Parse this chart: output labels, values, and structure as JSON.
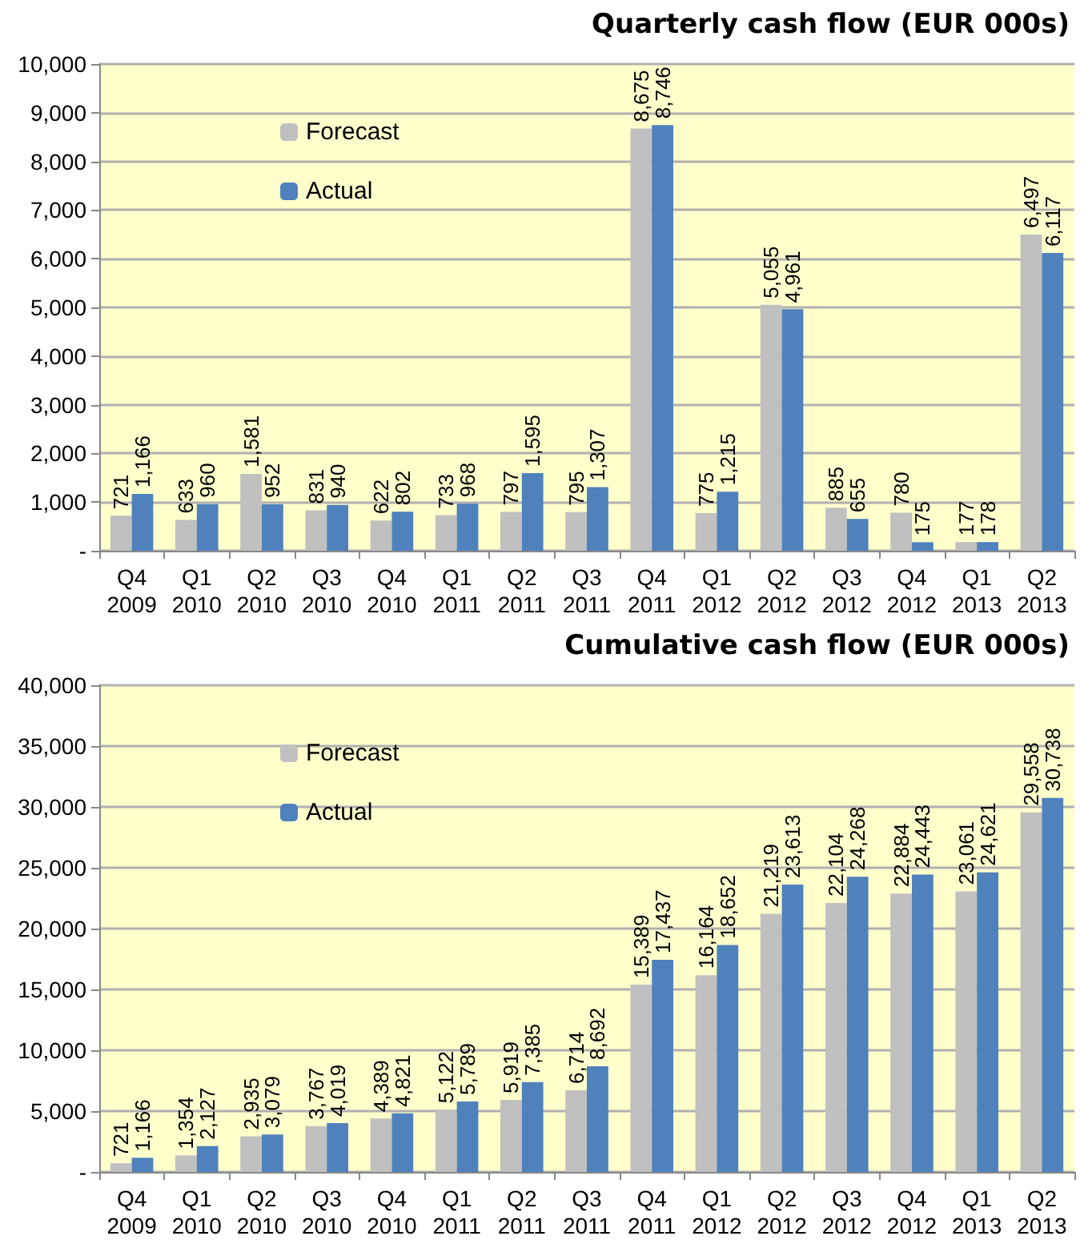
{
  "chart_data": [
    {
      "type": "bar",
      "title": "Quarterly cash flow (EUR 000s)",
      "categories": [
        "Q4\n2009",
        "Q1\n2010",
        "Q2\n2010",
        "Q3\n2010",
        "Q4\n2010",
        "Q1\n2011",
        "Q2\n2011",
        "Q3\n2011",
        "Q4\n2011",
        "Q1\n2012",
        "Q2\n2012",
        "Q3\n2012",
        "Q4\n2012",
        "Q1\n2013",
        "Q2\n2013"
      ],
      "series": [
        {
          "name": "Forecast",
          "color": "#c0c0c0",
          "values": [
            721,
            633,
            1581,
            831,
            622,
            733,
            797,
            795,
            8675,
            775,
            5055,
            885,
            780,
            177,
            6497
          ],
          "value_labels": [
            "721",
            "633",
            "1,581",
            "831",
            "622",
            "733",
            "797",
            "795",
            "8,675",
            "775",
            "5,055",
            "885",
            "780",
            "177",
            "6,497"
          ]
        },
        {
          "name": "Actual",
          "color": "#4f81bd",
          "values": [
            1166,
            960,
            952,
            940,
            802,
            968,
            1595,
            1307,
            8746,
            1215,
            4961,
            655,
            175,
            178,
            6117
          ],
          "value_labels": [
            "1,166",
            "960",
            "952",
            "940",
            "802",
            "968",
            "1,595",
            "1,307",
            "8,746",
            "1,215",
            "4,961",
            "655",
            "175",
            "178",
            "6,117"
          ]
        }
      ],
      "ylim": [
        0,
        10000
      ],
      "yticks": [
        {
          "value": 0,
          "label": "-"
        },
        {
          "value": 1000,
          "label": "1,000"
        },
        {
          "value": 2000,
          "label": "2,000"
        },
        {
          "value": 3000,
          "label": "3,000"
        },
        {
          "value": 4000,
          "label": "4,000"
        },
        {
          "value": 5000,
          "label": "5,000"
        },
        {
          "value": 6000,
          "label": "6,000"
        },
        {
          "value": 7000,
          "label": "7,000"
        },
        {
          "value": 8000,
          "label": "8,000"
        },
        {
          "value": 9000,
          "label": "9,000"
        },
        {
          "value": 10000,
          "label": "10,000"
        }
      ],
      "grid": "y",
      "legend": "top left"
    },
    {
      "type": "bar",
      "title": "Cumulative cash flow (EUR 000s)",
      "categories": [
        "Q4\n2009",
        "Q1\n2010",
        "Q2\n2010",
        "Q3\n2010",
        "Q4\n2010",
        "Q1\n2011",
        "Q2\n2011",
        "Q3\n2011",
        "Q4\n2011",
        "Q1\n2012",
        "Q2\n2012",
        "Q3\n2012",
        "Q4\n2012",
        "Q1\n2013",
        "Q2\n2013"
      ],
      "series": [
        {
          "name": "Forecast",
          "color": "#c0c0c0",
          "values": [
            721,
            1354,
            2935,
            3767,
            4389,
            5122,
            5919,
            6714,
            15389,
            16164,
            21219,
            22104,
            22884,
            23061,
            29558
          ],
          "value_labels": [
            "721",
            "1,354",
            "2,935",
            "3,767",
            "4,389",
            "5,122",
            "5,919",
            "6,714",
            "15,389",
            "16,164",
            "21,219",
            "22,104",
            "22,884",
            "23,061",
            "29,558"
          ]
        },
        {
          "name": "Actual",
          "color": "#4f81bd",
          "values": [
            1166,
            2127,
            3079,
            4019,
            4821,
            5789,
            7385,
            8692,
            17437,
            18652,
            23613,
            24268,
            24443,
            24621,
            30738
          ],
          "value_labels": [
            "1,166",
            "2,127",
            "3,079",
            "4,019",
            "4,821",
            "5,789",
            "7,385",
            "8,692",
            "17,437",
            "18,652",
            "23,613",
            "24,268",
            "24,443",
            "24,621",
            "30,738"
          ]
        }
      ],
      "ylim": [
        0,
        40000
      ],
      "yticks": [
        {
          "value": 0,
          "label": "-"
        },
        {
          "value": 5000,
          "label": "5,000"
        },
        {
          "value": 10000,
          "label": "10,000"
        },
        {
          "value": 15000,
          "label": "15,000"
        },
        {
          "value": 20000,
          "label": "20,000"
        },
        {
          "value": 25000,
          "label": "25,000"
        },
        {
          "value": 30000,
          "label": "30,000"
        },
        {
          "value": 35000,
          "label": "35,000"
        },
        {
          "value": 40000,
          "label": "40,000"
        }
      ],
      "grid": "y",
      "legend": "top left"
    }
  ]
}
